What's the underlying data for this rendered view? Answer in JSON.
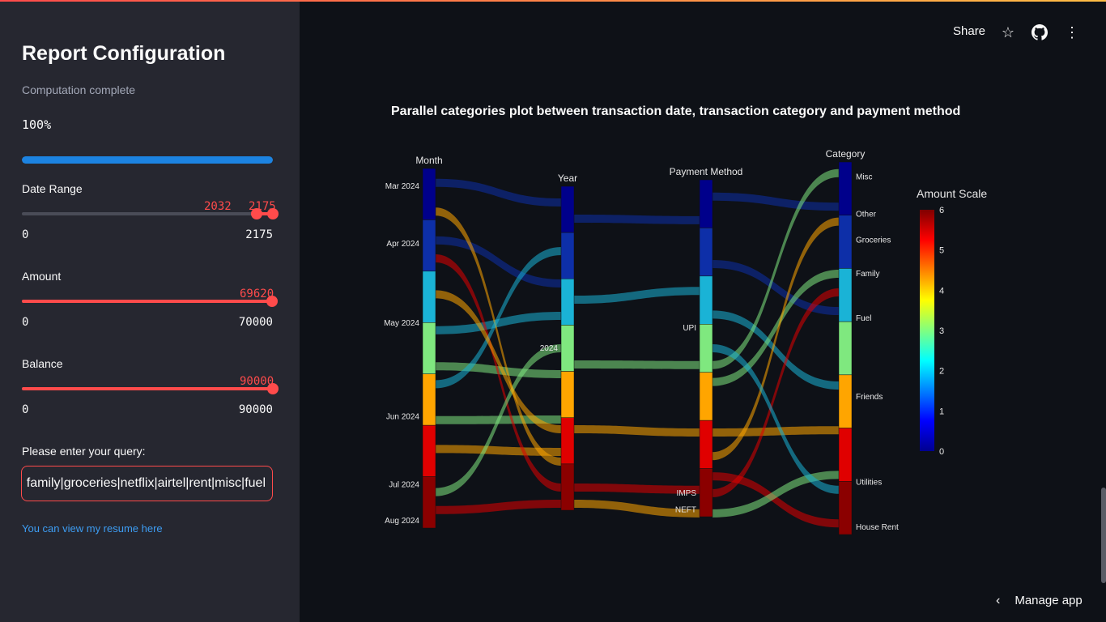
{
  "sidebar": {
    "title": "Report Configuration",
    "status": "Computation complete",
    "progress_text": "100%",
    "progress_value": 1.0,
    "date_range": {
      "label": "Date Range",
      "low": "2032",
      "high": "2175",
      "min": "0",
      "max": "2175",
      "low_fraction": 0.934,
      "high_fraction": 1.0
    },
    "amount": {
      "label": "Amount",
      "value": "69620",
      "min": "0",
      "max": "70000",
      "fraction": 0.9946
    },
    "balance": {
      "label": "Balance",
      "value": "90000",
      "min": "0",
      "max": "90000",
      "fraction": 1.0
    },
    "query": {
      "label": "Please enter your query:",
      "value": "family|groceries|netflix|airtel|rent|misc|fuel"
    },
    "resume_link": "You can view my resume here"
  },
  "header": {
    "share": "Share",
    "icons": [
      "star-icon",
      "github-icon",
      "more-vertical-icon"
    ]
  },
  "manage_app": "Manage app",
  "chart_data": {
    "type": "parallel-categories",
    "title": "Parallel categories plot between transaction date, transaction category and payment method",
    "dimensions": [
      {
        "label": "Month",
        "categories": [
          "Mar 2024",
          "Apr 2024",
          "May 2024",
          "Jun 2024",
          "Jul 2024",
          "Aug 2024"
        ]
      },
      {
        "label": "Year",
        "categories": [
          "2024"
        ]
      },
      {
        "label": "Payment Method",
        "categories": [
          "UPI",
          "IMPS",
          "NEFT"
        ]
      },
      {
        "label": "Category",
        "categories": [
          "Misc",
          "Other",
          "Groceries",
          "Family",
          "Fuel",
          "Friends",
          "Utilities",
          "House Rent"
        ]
      }
    ],
    "colorbar": {
      "title": "Amount Scale",
      "ticks": [
        "6",
        "5",
        "4",
        "3",
        "2",
        "1",
        "0"
      ],
      "range": [
        0,
        6
      ],
      "colorscale": "jet"
    }
  }
}
